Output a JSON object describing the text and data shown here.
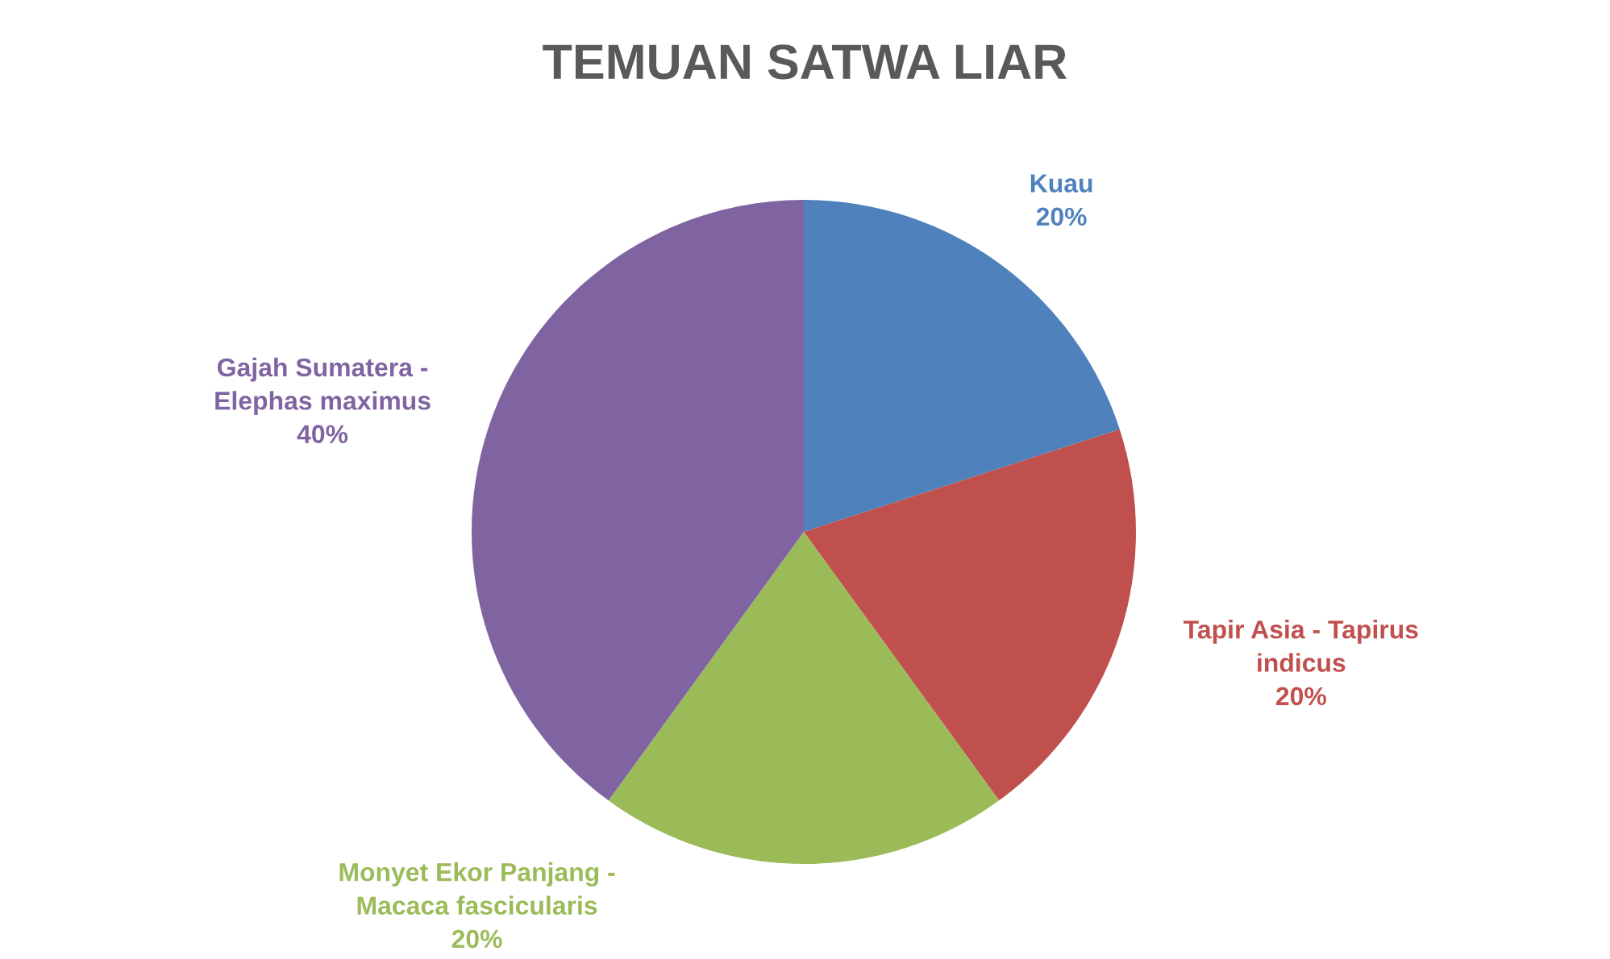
{
  "chart_data": {
    "type": "pie",
    "title": "TEMUAN SATWA LIAR",
    "categories": [
      "Kuau",
      "Tapir Asia - Tapirus indicus",
      "Monyet Ekor Panjang - Macaca fascicularis",
      "Gajah Sumatera - Elephas maximus"
    ],
    "values": [
      20,
      20,
      20,
      40
    ],
    "value_labels": [
      "20%",
      "20%",
      "20%",
      "40%"
    ],
    "colors": [
      "#4f81bd",
      "#c0504d",
      "#9bbb59",
      "#8064a2"
    ],
    "legend": false
  }
}
